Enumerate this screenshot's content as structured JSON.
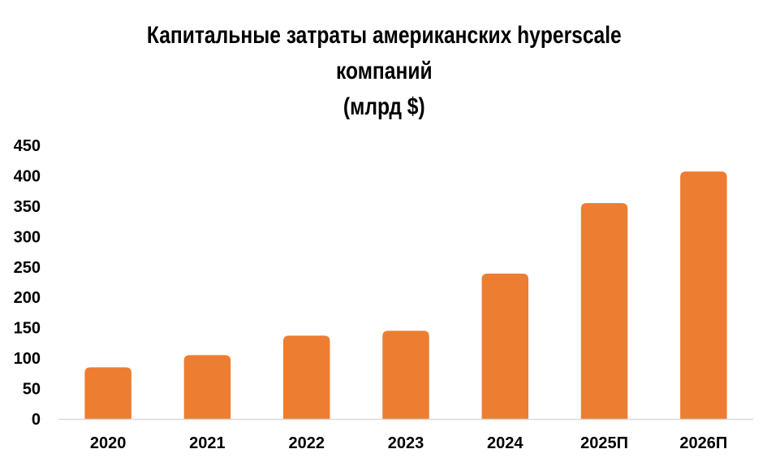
{
  "chart_data": {
    "type": "bar",
    "title_lines": [
      "Капитальные затраты американских hyperscale",
      "компаний",
      "(млрд $)"
    ],
    "categories": [
      "2020",
      "2021",
      "2022",
      "2023",
      "2024",
      "2025П",
      "2026П"
    ],
    "values": [
      85,
      105,
      137,
      145,
      239,
      355,
      407
    ],
    "yticks": [
      "0",
      "50",
      "100",
      "150",
      "200",
      "250",
      "300",
      "350",
      "400",
      "450"
    ],
    "ylim": [
      0,
      450
    ],
    "xlabel": "",
    "ylabel": "",
    "grid": false,
    "legend": "none",
    "bar_color": "#ED7D31",
    "axis_color": "#D9D9D9"
  }
}
